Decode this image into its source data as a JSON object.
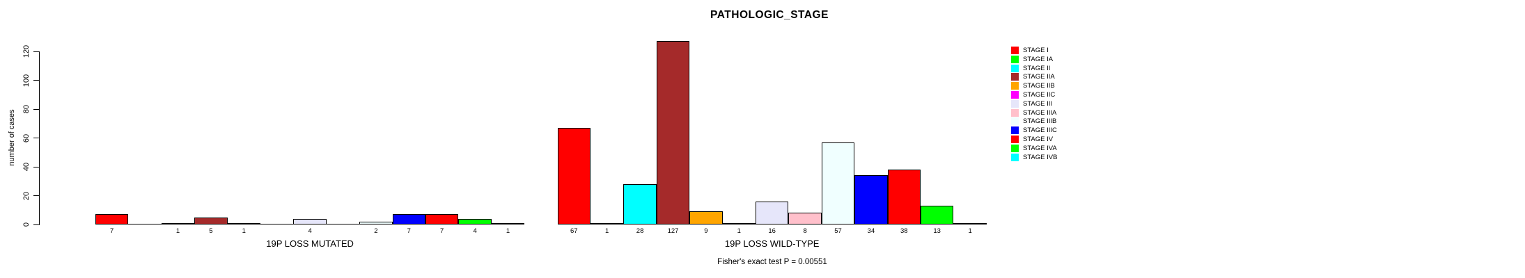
{
  "chart_data": {
    "type": "bar",
    "title": "PATHOLOGIC_STAGE",
    "ylabel": "number of cases",
    "xlabel": "",
    "ylim": [
      0,
      130
    ],
    "yticks": [
      0,
      20,
      40,
      60,
      80,
      100,
      120
    ],
    "grid": false,
    "legend_position": "right",
    "bar_border_color": "#000000",
    "categories": [
      "STAGE I",
      "STAGE IA",
      "STAGE II",
      "STAGE IIA",
      "STAGE IIB",
      "STAGE IIC",
      "STAGE III",
      "STAGE IIIA",
      "STAGE IIIB",
      "STAGE IIIC",
      "STAGE IV",
      "STAGE IVA",
      "STAGE IVB"
    ],
    "colors": [
      "#FF0000",
      "#00FF00",
      "#00FFFF",
      "#A52A2A",
      "#FFA500",
      "#FF00FF",
      "#E6E6FA",
      "#FFC0CB",
      "#F0FFFF",
      "#0000FF",
      "#FF0000",
      "#00FF00",
      "#00FFFF"
    ],
    "series": [
      {
        "name": "19P LOSS MUTATED",
        "values": [
          7,
          0,
          1,
          5,
          1,
          0,
          4,
          0,
          2,
          7,
          7,
          4,
          1
        ]
      },
      {
        "name": "19P LOSS WILD-TYPE",
        "values": [
          67,
          1,
          28,
          127,
          9,
          1,
          16,
          8,
          57,
          34,
          38,
          13,
          1
        ]
      }
    ],
    "annotation": "Fisher's exact test P = 0.00551"
  }
}
